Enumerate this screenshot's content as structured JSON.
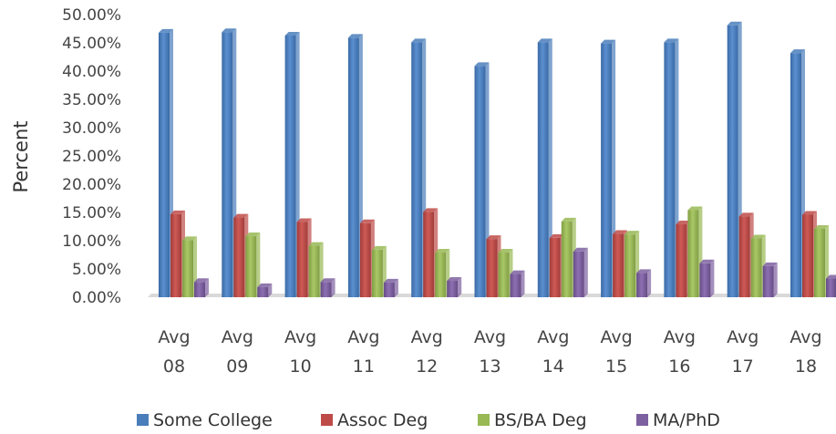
{
  "chart_data": {
    "type": "bar",
    "ylabel": "Percent",
    "ylim": [
      0,
      0.5
    ],
    "y_tick_format": "percent_2dp",
    "y_ticks": [
      "0.00%",
      "5.00%",
      "10.00%",
      "15.00%",
      "20.00%",
      "25.00%",
      "30.00%",
      "35.00%",
      "40.00%",
      "45.00%",
      "50.00%"
    ],
    "categories": [
      [
        "Avg",
        "08"
      ],
      [
        "Avg",
        "09"
      ],
      [
        "Avg",
        "10"
      ],
      [
        "Avg",
        "11"
      ],
      [
        "Avg",
        "12"
      ],
      [
        "Avg",
        "13"
      ],
      [
        "Avg",
        "14"
      ],
      [
        "Avg",
        "15"
      ],
      [
        "Avg",
        "16"
      ],
      [
        "Avg",
        "17"
      ],
      [
        "Avg",
        "18"
      ]
    ],
    "series": [
      {
        "name": "Some College",
        "color": "#4a7ebb",
        "values": [
          0.468,
          0.469,
          0.463,
          0.459,
          0.451,
          0.409,
          0.451,
          0.449,
          0.451,
          0.481,
          0.432
        ]
      },
      {
        "name": "Assoc Deg",
        "color": "#be4b48",
        "values": [
          0.147,
          0.141,
          0.133,
          0.131,
          0.151,
          0.103,
          0.105,
          0.112,
          0.129,
          0.143,
          0.146
        ]
      },
      {
        "name": "BS/BA Deg",
        "color": "#98b954",
        "values": [
          0.101,
          0.108,
          0.091,
          0.084,
          0.079,
          0.079,
          0.134,
          0.111,
          0.154,
          0.104,
          0.121
        ]
      },
      {
        "name": "MA/PhD",
        "color": "#7d60a0",
        "values": [
          0.027,
          0.018,
          0.027,
          0.026,
          0.029,
          0.041,
          0.081,
          0.043,
          0.06,
          0.055,
          0.033
        ]
      }
    ],
    "legend_position": "bottom",
    "grid": false,
    "style": "3d-clustered-column"
  }
}
